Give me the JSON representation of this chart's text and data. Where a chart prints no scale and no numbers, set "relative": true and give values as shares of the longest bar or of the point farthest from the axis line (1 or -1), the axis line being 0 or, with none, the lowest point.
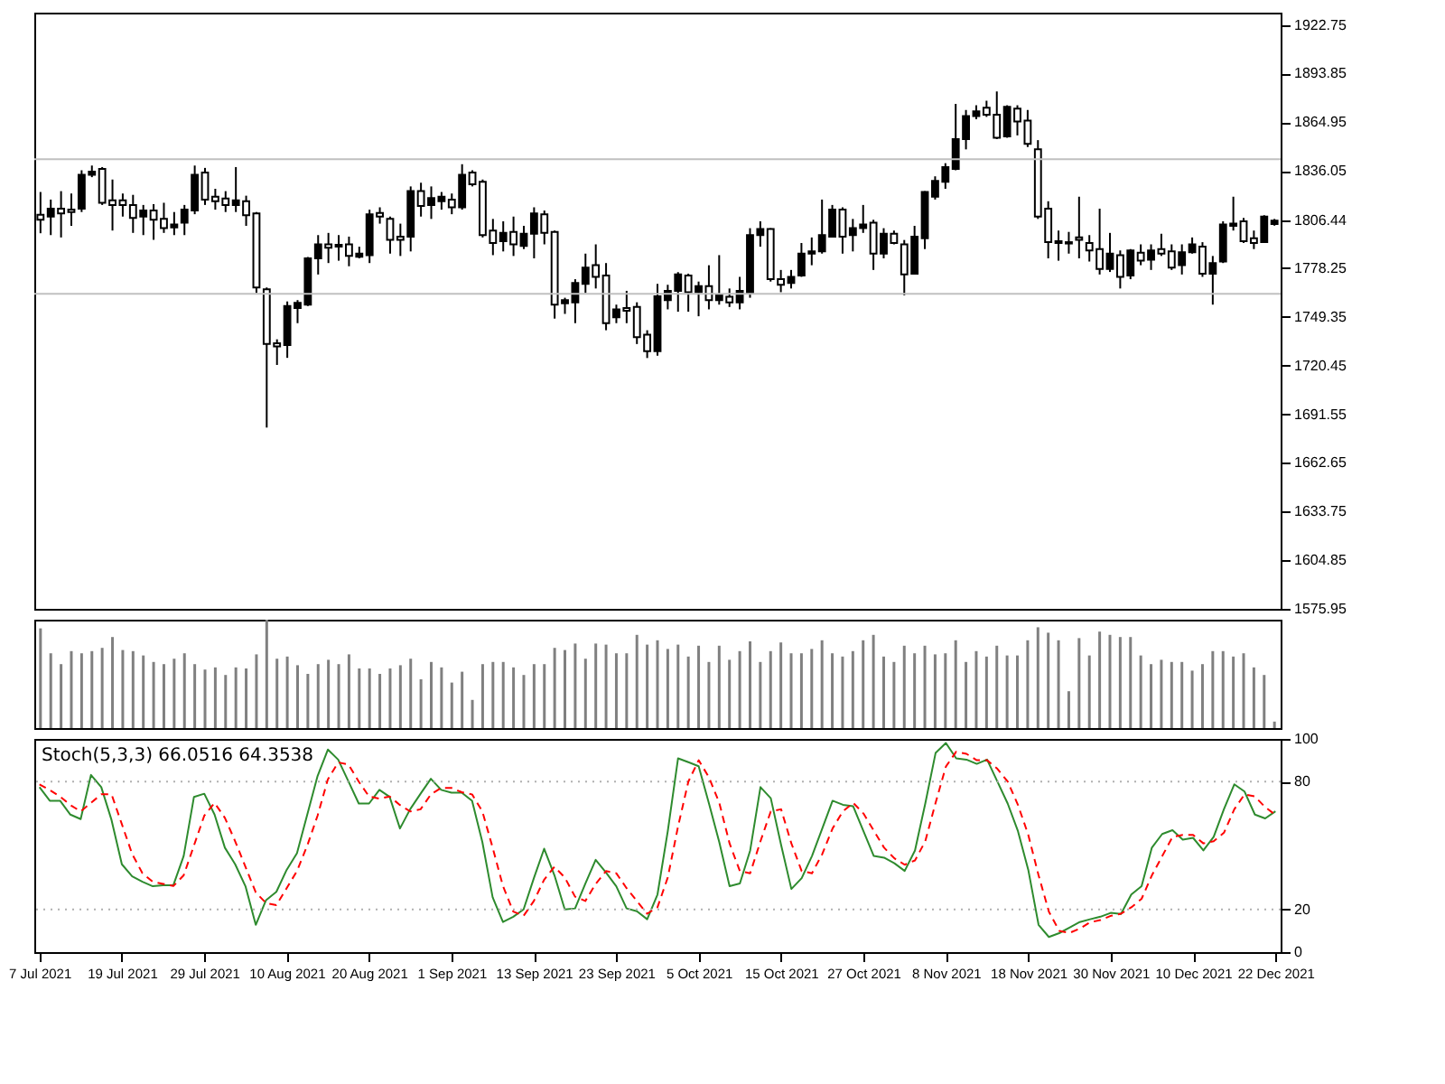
{
  "chart_data": [
    {
      "type": "candlestick",
      "tick_labels": "y",
      "categories": [
        null,
        null,
        null,
        null,
        null,
        null,
        null,
        null,
        null,
        null,
        null,
        null,
        null,
        null,
        null,
        null,
        null,
        null,
        null,
        null,
        null,
        null,
        null,
        null,
        null,
        null,
        null,
        null,
        null,
        null,
        null,
        null,
        null,
        null,
        null,
        null,
        null,
        null,
        null,
        null,
        null,
        null,
        null,
        null,
        null,
        null,
        null,
        null,
        null,
        null,
        null,
        null,
        null,
        null,
        null,
        null,
        null,
        null,
        null,
        null,
        null,
        null,
        null,
        null,
        null,
        null,
        null,
        null,
        null,
        null,
        null,
        null,
        null,
        null,
        null,
        null,
        null,
        null,
        null,
        null,
        null,
        null,
        null,
        null,
        null,
        null,
        null,
        null,
        null,
        null,
        null,
        null,
        null,
        null,
        null,
        null,
        null,
        null,
        null,
        null,
        null,
        null,
        null,
        null,
        null,
        null,
        null,
        null,
        null,
        null,
        null,
        null,
        null,
        null,
        null,
        null,
        null,
        null,
        null,
        null,
        null
      ],
      "ohlc": [
        [
          1810,
          1823.5,
          1799,
          1807
        ],
        [
          1808.9,
          1819,
          1797.9,
          1813.6
        ],
        [
          1813.6,
          1824,
          1796.5,
          1810.8
        ],
        [
          1813,
          1822.6,
          1803.4,
          1811.6
        ],
        [
          1813.6,
          1836.4,
          1811.6,
          1833.7
        ],
        [
          1833.7,
          1839.2,
          1832.3,
          1835.6
        ],
        [
          1837.2,
          1838.3,
          1815.8,
          1817.1
        ],
        [
          1818.5,
          1830.9,
          1800.6,
          1815.8
        ],
        [
          1818.5,
          1822.6,
          1808.9,
          1815.8
        ],
        [
          1815.8,
          1821.8,
          1799.2,
          1808.1
        ],
        [
          1808.9,
          1815.8,
          1797.9,
          1812.5
        ],
        [
          1812.5,
          1816.3,
          1795.1,
          1807
        ],
        [
          1807.5,
          1817.1,
          1799.2,
          1802
        ],
        [
          1802.5,
          1811.6,
          1797.9,
          1804.2
        ],
        [
          1805.3,
          1815.8,
          1797.9,
          1813
        ],
        [
          1812.5,
          1839.2,
          1810.3,
          1833.7
        ],
        [
          1835,
          1837.8,
          1815.8,
          1819
        ],
        [
          1820.7,
          1825.4,
          1813,
          1818
        ],
        [
          1819.6,
          1824,
          1811.6,
          1815.8
        ],
        [
          1815.8,
          1838.3,
          1811.6,
          1818.5
        ],
        [
          1818,
          1821.3,
          1803.4,
          1809.7
        ],
        [
          1810.8,
          1811.6,
          1763.5,
          1766.8
        ],
        [
          1765.7,
          1766.8,
          1683.6,
          1733.2
        ],
        [
          1733.7,
          1736,
          1720.8,
          1731.8
        ],
        [
          1732.6,
          1758.5,
          1725,
          1755.8
        ],
        [
          1754.6,
          1759.3,
          1745.6,
          1757.7
        ],
        [
          1756.6,
          1784.9,
          1755.8,
          1784.1
        ],
        [
          1784.1,
          1797.9,
          1774.5,
          1792.4
        ],
        [
          1792.4,
          1799.2,
          1781.3,
          1790.4
        ],
        [
          1792.1,
          1797.9,
          1782.7,
          1791
        ],
        [
          1792.4,
          1797,
          1779.4,
          1785.5
        ],
        [
          1785,
          1791,
          1784.1,
          1786.9
        ],
        [
          1786,
          1813,
          1781.3,
          1810.2
        ],
        [
          1811,
          1814.4,
          1804.7,
          1808.9
        ],
        [
          1807.5,
          1808.9,
          1786.9,
          1795.1
        ],
        [
          1797,
          1804.7,
          1785.5,
          1795.1
        ],
        [
          1797,
          1826.8,
          1788.2,
          1824
        ],
        [
          1824,
          1829,
          1808.9,
          1815.2
        ],
        [
          1815.8,
          1826.8,
          1807.5,
          1819.9
        ],
        [
          1818,
          1823.5,
          1813,
          1820.7
        ],
        [
          1819,
          1822.6,
          1810.3,
          1814.4
        ],
        [
          1814.4,
          1840,
          1813,
          1833.7
        ],
        [
          1835,
          1836.4,
          1826.8,
          1828.1
        ],
        [
          1829.5,
          1830.9,
          1796.5,
          1797.9
        ],
        [
          1800.6,
          1807.5,
          1786,
          1793.2
        ],
        [
          1794.3,
          1806.1,
          1788.2,
          1799.2
        ],
        [
          1799.8,
          1808.9,
          1785.5,
          1792.4
        ],
        [
          1791.5,
          1803.4,
          1789.6,
          1798.7
        ],
        [
          1798.7,
          1814.4,
          1784.1,
          1810.8
        ],
        [
          1810.2,
          1812.5,
          1792.4,
          1799.2
        ],
        [
          1799.8,
          1800.6,
          1748.3,
          1756.6
        ],
        [
          1757.4,
          1760.7,
          1751.1,
          1759.3
        ],
        [
          1758,
          1771.7,
          1745.6,
          1769.5
        ],
        [
          1769,
          1786.9,
          1763.5,
          1778.6
        ],
        [
          1780,
          1792.4,
          1766.2,
          1773.1
        ],
        [
          1773.9,
          1781.3,
          1741.4,
          1745.6
        ],
        [
          1749.1,
          1756.6,
          1745.6,
          1753.8
        ],
        [
          1754.6,
          1764.8,
          1745.6,
          1753
        ],
        [
          1755.2,
          1758,
          1733.2,
          1737.3
        ],
        [
          1738.7,
          1741.4,
          1724.9,
          1729
        ],
        [
          1729,
          1768.9,
          1726.3,
          1761.5
        ],
        [
          1759.3,
          1768.4,
          1753.8,
          1764.8
        ],
        [
          1764.8,
          1775.9,
          1752.4,
          1774.5
        ],
        [
          1773.9,
          1775,
          1752.4,
          1764
        ],
        [
          1764,
          1770.3,
          1749.7,
          1767.6
        ],
        [
          1767.6,
          1780,
          1753.8,
          1759.3
        ],
        [
          1759.3,
          1786,
          1756.6,
          1762.1
        ],
        [
          1761.3,
          1766.2,
          1755.2,
          1758
        ],
        [
          1758,
          1773.1,
          1753.8,
          1764.8
        ],
        [
          1763.5,
          1802,
          1760.7,
          1797.9
        ],
        [
          1797.9,
          1806.1,
          1791,
          1801.5
        ],
        [
          1801.5,
          1802,
          1770.3,
          1771.7
        ],
        [
          1771.7,
          1777.2,
          1764,
          1768.4
        ],
        [
          1769.5,
          1777.2,
          1766.2,
          1773.1
        ],
        [
          1773.9,
          1793.2,
          1773.1,
          1786.9
        ],
        [
          1786.9,
          1796.5,
          1780,
          1788.2
        ],
        [
          1788.2,
          1819,
          1786.9,
          1797.9
        ],
        [
          1797,
          1815.8,
          1796.5,
          1813
        ],
        [
          1813,
          1814.4,
          1786.9,
          1797
        ],
        [
          1797.9,
          1807.5,
          1788.2,
          1802
        ],
        [
          1802,
          1815.8,
          1799.2,
          1804.2
        ],
        [
          1805.3,
          1807,
          1777.2,
          1786.9
        ],
        [
          1786.9,
          1802,
          1784.1,
          1798.7
        ],
        [
          1798.7,
          1800.6,
          1792.4,
          1793.2
        ],
        [
          1792.4,
          1795,
          1762.1,
          1774.5
        ],
        [
          1775,
          1803.4,
          1774.5,
          1797
        ],
        [
          1796,
          1824,
          1789.6,
          1823.5
        ],
        [
          1820.7,
          1832.8,
          1819,
          1830.1
        ],
        [
          1829.5,
          1840.6,
          1825.4,
          1838.3
        ],
        [
          1837.2,
          1875.8,
          1836.4,
          1854.9
        ],
        [
          1854.9,
          1872.2,
          1848.8,
          1868.6
        ],
        [
          1868.6,
          1875,
          1866.7,
          1871.4
        ],
        [
          1873.6,
          1877.7,
          1868.1,
          1869.4
        ],
        [
          1869.4,
          1883.2,
          1854.9,
          1855.7
        ],
        [
          1856.5,
          1875,
          1855.7,
          1874.1
        ],
        [
          1873,
          1875,
          1857.1,
          1865.3
        ],
        [
          1865.9,
          1872.2,
          1850.2,
          1852.1
        ],
        [
          1848.8,
          1854.3,
          1807.5,
          1808.9
        ],
        [
          1813.6,
          1818,
          1784.1,
          1793.7
        ],
        [
          1794.3,
          1800.6,
          1782.7,
          1793.2
        ],
        [
          1793.7,
          1799.8,
          1786.9,
          1792.9
        ],
        [
          1796.5,
          1820.7,
          1784.1,
          1795.1
        ],
        [
          1793.2,
          1797.9,
          1782.2,
          1788.8
        ],
        [
          1789.6,
          1813.6,
          1774.5,
          1777.8
        ],
        [
          1777.8,
          1799.2,
          1776,
          1786.9
        ],
        [
          1786,
          1788.8,
          1766.2,
          1773.1
        ],
        [
          1773.9,
          1789.6,
          1771.7,
          1788.8
        ],
        [
          1787.4,
          1792.4,
          1780,
          1782.7
        ],
        [
          1783.3,
          1792.4,
          1777.2,
          1788.8
        ],
        [
          1789.6,
          1798.7,
          1785.5,
          1786.9
        ],
        [
          1788.2,
          1792.4,
          1777.2,
          1778.6
        ],
        [
          1780,
          1792.4,
          1774.5,
          1787.7
        ],
        [
          1787.7,
          1796.5,
          1786.9,
          1792.4
        ],
        [
          1791,
          1793.7,
          1773.1,
          1775
        ],
        [
          1775,
          1785.5,
          1756.6,
          1781.3
        ],
        [
          1782.2,
          1806.1,
          1781.3,
          1804.2
        ],
        [
          1803.4,
          1820.7,
          1800.6,
          1804.7
        ],
        [
          1806.1,
          1808.1,
          1793.2,
          1794.3
        ],
        [
          1796,
          1800.6,
          1789.6,
          1793.2
        ],
        [
          1793.7,
          1809.7,
          1793.2,
          1808.9
        ],
        [
          1804.5,
          1807.5,
          1803.5,
          1806.44
        ]
      ],
      "ylim": [
        1575.95,
        1930
      ],
      "yticks": [
        1575.95,
        1604.85,
        1633.75,
        1662.65,
        1691.55,
        1720.45,
        1749.35,
        1778.25,
        1806.44,
        1836.05,
        1864.95,
        1893.85,
        1922.75
      ],
      "ref_lines": [
        {
          "axis": "y",
          "value": 1843,
          "color": "#c0c0c0"
        },
        {
          "axis": "y",
          "value": 1763,
          "color": "#c0c0c0"
        }
      ]
    },
    {
      "type": "bar",
      "relative": true,
      "tick_labels": false,
      "color": "#808080",
      "categories": [
        null,
        null,
        null,
        null,
        null,
        null,
        null,
        null,
        null,
        null,
        null,
        null,
        null,
        null,
        null,
        null,
        null,
        null,
        null,
        null,
        null,
        null,
        null,
        null,
        null,
        null,
        null,
        null,
        null,
        null,
        null,
        null,
        null,
        null,
        null,
        null,
        null,
        null,
        null,
        null,
        null,
        null,
        null,
        null,
        null,
        null,
        null,
        null,
        null,
        null,
        null,
        null,
        null,
        null,
        null,
        null,
        null,
        null,
        null,
        null,
        null,
        null,
        null,
        null,
        null,
        null,
        null,
        null,
        null,
        null,
        null,
        null,
        null,
        null,
        null,
        null,
        null,
        null,
        null,
        null,
        null,
        null,
        null,
        null,
        null,
        null,
        null,
        null,
        null,
        null,
        null,
        null,
        null,
        null,
        null,
        null,
        null,
        null,
        null,
        null,
        null,
        null,
        null,
        null,
        null,
        null,
        null,
        null,
        null,
        null,
        null,
        null,
        null,
        null,
        null,
        null,
        null,
        null,
        null,
        null,
        null
      ],
      "values": [
        0.92,
        0.69,
        0.59,
        0.71,
        0.69,
        0.71,
        0.74,
        0.84,
        0.72,
        0.71,
        0.67,
        0.61,
        0.59,
        0.64,
        0.69,
        0.59,
        0.54,
        0.56,
        0.49,
        0.56,
        0.55,
        0.68,
        1,
        0.64,
        0.66,
        0.58,
        0.5,
        0.59,
        0.63,
        0.59,
        0.68,
        0.55,
        0.55,
        0.5,
        0.55,
        0.58,
        0.64,
        0.45,
        0.61,
        0.56,
        0.42,
        0.52,
        0.26,
        0.59,
        0.61,
        0.61,
        0.56,
        0.49,
        0.59,
        0.59,
        0.74,
        0.72,
        0.78,
        0.64,
        0.78,
        0.77,
        0.69,
        0.69,
        0.86,
        0.77,
        0.81,
        0.73,
        0.77,
        0.66,
        0.76,
        0.61,
        0.76,
        0.63,
        0.71,
        0.8,
        0.61,
        0.71,
        0.79,
        0.69,
        0.69,
        0.73,
        0.81,
        0.69,
        0.66,
        0.71,
        0.81,
        0.86,
        0.66,
        0.61,
        0.76,
        0.69,
        0.76,
        0.68,
        0.69,
        0.81,
        0.61,
        0.71,
        0.66,
        0.76,
        0.67,
        0.67,
        0.81,
        0.93,
        0.88,
        0.81,
        0.34,
        0.83,
        0.67,
        0.89,
        0.86,
        0.84,
        0.84,
        0.67,
        0.59,
        0.63,
        0.61,
        0.61,
        0.53,
        0.59,
        0.71,
        0.71,
        0.66,
        0.69,
        0.56,
        0.49,
        0.06
      ]
    },
    {
      "type": "line",
      "categories": [
        "7 Jul 2021",
        null,
        null,
        null,
        null,
        null,
        null,
        null,
        "19 Jul 2021",
        null,
        null,
        null,
        null,
        null,
        null,
        null,
        "29 Jul 2021",
        null,
        null,
        null,
        null,
        null,
        null,
        null,
        "10 Aug 2021",
        null,
        null,
        null,
        null,
        null,
        null,
        null,
        "20 Aug 2021",
        null,
        null,
        null,
        null,
        null,
        null,
        null,
        "1 Sep 2021",
        null,
        null,
        null,
        null,
        null,
        null,
        null,
        "13 Sep 2021",
        null,
        null,
        null,
        null,
        null,
        null,
        null,
        "23 Sep 2021",
        null,
        null,
        null,
        null,
        null,
        null,
        null,
        "5 Oct 2021",
        null,
        null,
        null,
        null,
        null,
        null,
        null,
        "15 Oct 2021",
        null,
        null,
        null,
        null,
        null,
        null,
        null,
        "27 Oct 2021",
        null,
        null,
        null,
        null,
        null,
        null,
        null,
        "8 Nov 2021",
        null,
        null,
        null,
        null,
        null,
        null,
        null,
        "18 Nov 2021",
        null,
        null,
        null,
        null,
        null,
        null,
        null,
        "30 Nov 2021",
        null,
        null,
        null,
        null,
        null,
        null,
        null,
        "10 Dec 2021",
        null,
        null,
        null,
        null,
        null,
        null,
        null,
        "22 Dec 2021"
      ],
      "annotations": [
        "Stoch(5,3,3) 66.0516 64.3538"
      ],
      "ylim": [
        0,
        100
      ],
      "yticks": [
        0,
        20,
        80,
        100
      ],
      "ref_lines": [
        {
          "axis": "y",
          "value": 20,
          "color": "#b0b0b0",
          "line_style": "dotted"
        },
        {
          "axis": "y",
          "value": 80,
          "color": "#b0b0b0",
          "line_style": "dotted"
        }
      ],
      "series": [
        {
          "color": "#2e8b2e",
          "line_style": "solid",
          "values": [
            77.4,
            71,
            71,
            64.5,
            62.4,
            83.1,
            77.4,
            61.9,
            41.2,
            35.5,
            33,
            30.9,
            31.4,
            31.4,
            45.1,
            72.8,
            74.3,
            64.5,
            49,
            41.2,
            30.9,
            12.8,
            24.4,
            28.3,
            38.6,
            46.4,
            64.5,
            82.6,
            95,
            90.3,
            80,
            69.7,
            69.7,
            76.1,
            72.8,
            58,
            67.1,
            74.3,
            81.3,
            76.1,
            74.8,
            74.8,
            71,
            51.6,
            25.7,
            14.1,
            16.6,
            20,
            34.7,
            48.5,
            36,
            20,
            20.5,
            32.2,
            43.3,
            37.3,
            30.9,
            20.5,
            19.2,
            15.4,
            27,
            56.7,
            90.9,
            89.1,
            87.2,
            69.7,
            51.6,
            30.9,
            32.2,
            47.7,
            77.4,
            72.2,
            50.3,
            29.6,
            34.7,
            45.1,
            58,
            71,
            69.1,
            68.4,
            56.7,
            45.1,
            44.3,
            41.7,
            38.1,
            47.7,
            69.7,
            93.4,
            98.1,
            90.9,
            90.3,
            88.3,
            90.3,
            80,
            69.7,
            56.7,
            38.6,
            12.8,
            7.1,
            8.9,
            11.5,
            14.1,
            15.4,
            16.6,
            18.4,
            17.9,
            27,
            30.9,
            49,
            55.4,
            57.2,
            52.8,
            53.6,
            47.7,
            54.1,
            67.1,
            78.7,
            75.3,
            64.5,
            62.7,
            66.05
          ]
        },
        {
          "color": "#ff0000",
          "line_style": "dashed",
          "values": [
            78.7,
            76,
            73,
            69,
            66,
            70,
            74,
            74,
            60,
            46,
            37,
            33,
            32,
            31,
            36,
            50,
            64,
            70,
            63,
            52,
            40,
            28,
            23,
            22,
            30,
            38,
            50,
            64,
            81,
            89,
            88,
            80,
            73,
            72,
            73,
            69,
            66,
            67,
            74,
            77,
            77,
            75,
            74,
            66,
            49,
            31,
            19,
            17,
            24,
            34,
            40,
            35,
            26,
            24,
            32,
            38,
            37,
            30,
            24,
            18,
            21,
            35,
            59,
            80,
            90,
            82,
            70,
            51,
            38,
            37,
            52,
            66,
            67,
            51,
            38,
            37,
            46,
            58,
            66,
            70,
            65,
            57,
            49,
            44,
            41,
            43,
            52,
            70,
            87,
            94,
            93,
            90,
            90,
            86,
            80,
            69,
            55,
            36,
            19,
            10,
            9,
            11,
            14,
            15,
            17,
            18,
            21,
            25,
            36,
            45,
            54,
            55,
            55,
            51,
            52,
            56,
            67,
            74,
            73,
            68,
            64.35
          ]
        }
      ]
    }
  ]
}
